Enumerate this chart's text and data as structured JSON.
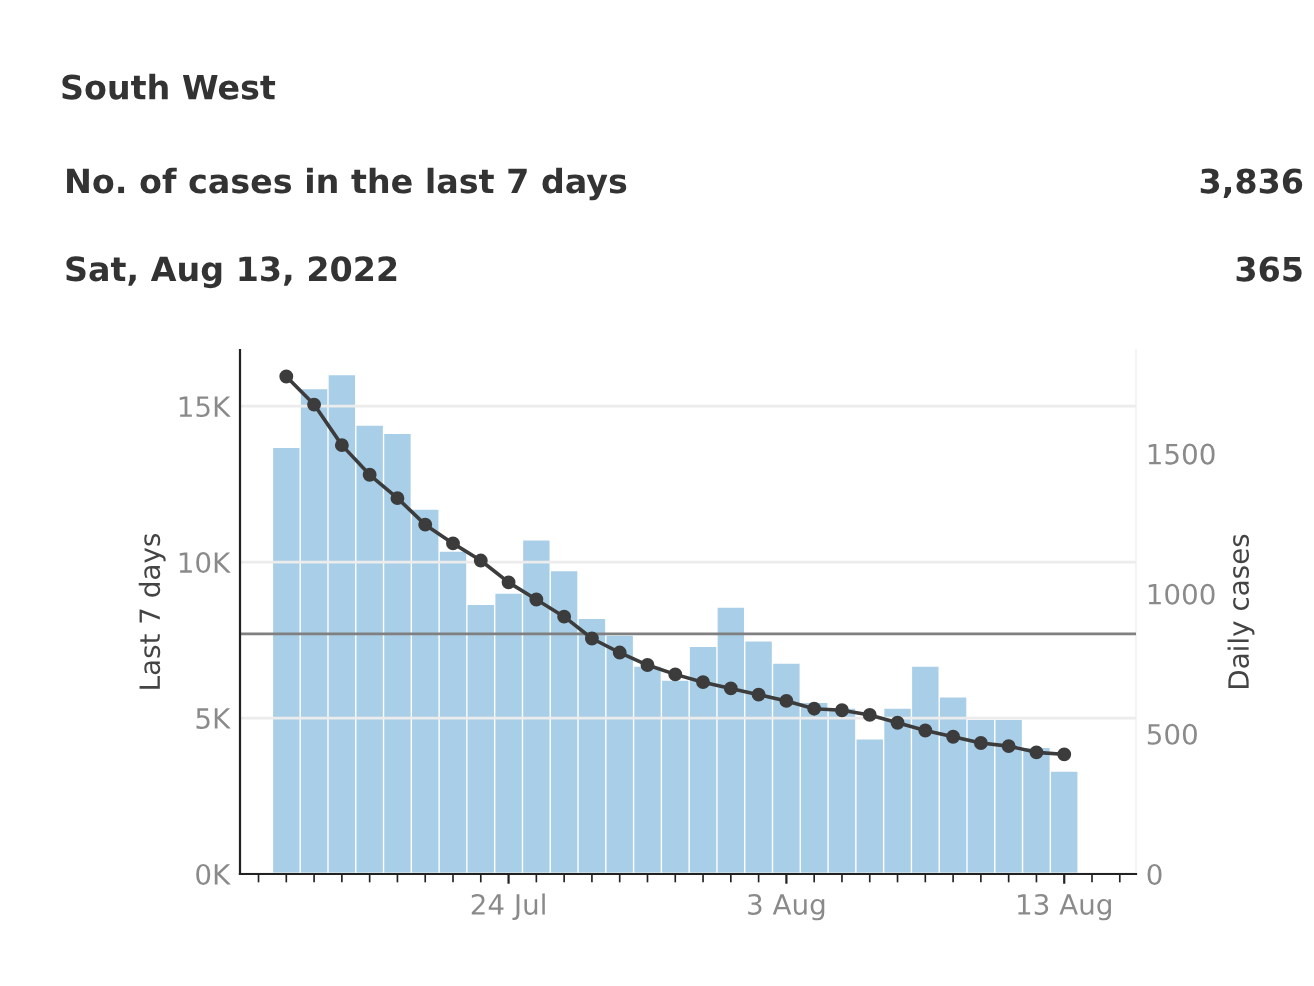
{
  "chart_data": {
    "type": "bar",
    "title": "South West",
    "annotations": [
      "No. of cases in the last 7 days",
      "3,836",
      "Sat, Aug 13, 2022",
      "365"
    ],
    "ylabel": "Last 7 days",
    "y2label": "Daily cases",
    "x": [
      "2022-07-16",
      "2022-07-17",
      "2022-07-18",
      "2022-07-19",
      "2022-07-20",
      "2022-07-21",
      "2022-07-22",
      "2022-07-23",
      "2022-07-24",
      "2022-07-25",
      "2022-07-26",
      "2022-07-27",
      "2022-07-28",
      "2022-07-29",
      "2022-07-30",
      "2022-07-31",
      "2022-08-01",
      "2022-08-02",
      "2022-08-03",
      "2022-08-04",
      "2022-08-05",
      "2022-08-06",
      "2022-08-07",
      "2022-08-08",
      "2022-08-09",
      "2022-08-10",
      "2022-08-11",
      "2022-08-12",
      "2022-08-13"
    ],
    "series": [
      {
        "axis": "y2",
        "color": "#a9cfe8",
        "values": [
          1520,
          1730,
          1780,
          1600,
          1570,
          1300,
          1150,
          960,
          1000,
          1190,
          1080,
          910,
          850,
          740,
          690,
          810,
          950,
          830,
          750,
          610,
          590,
          480,
          590,
          740,
          630,
          550,
          550,
          450,
          365
        ]
      },
      {
        "type": "line",
        "axis": "y",
        "color": "#3c3c3c",
        "marker": "circle",
        "values": [
          15950,
          15050,
          13750,
          12800,
          12050,
          11200,
          10600,
          10050,
          9350,
          8800,
          8250,
          7550,
          7100,
          6700,
          6400,
          6150,
          5950,
          5750,
          5550,
          5300,
          5250,
          5100,
          4850,
          4600,
          4400,
          4200,
          4100,
          3900,
          3836
        ]
      }
    ],
    "xlim": [
      "2022-07-14T08:00",
      "2022-08-15T14:00"
    ],
    "xticks": [
      {
        "value": "2022-07-24",
        "label": "24 Jul"
      },
      {
        "value": "2022-08-03",
        "label": "3 Aug"
      },
      {
        "value": "2022-08-13",
        "label": "13 Aug"
      }
    ],
    "ylim": [
      0,
      16800
    ],
    "yticks": [
      {
        "value": 0,
        "label": "0K"
      },
      {
        "value": 5000,
        "label": "5K"
      },
      {
        "value": 10000,
        "label": "10K"
      },
      {
        "value": 15000,
        "label": "15K"
      }
    ],
    "y2lim": [
      0,
      1870
    ],
    "y2ticks": [
      0,
      500,
      1000,
      1500
    ],
    "ref_lines": [
      {
        "axis": "y",
        "value": 7700,
        "color": "#808080"
      }
    ],
    "grid": "y",
    "legend": false
  }
}
